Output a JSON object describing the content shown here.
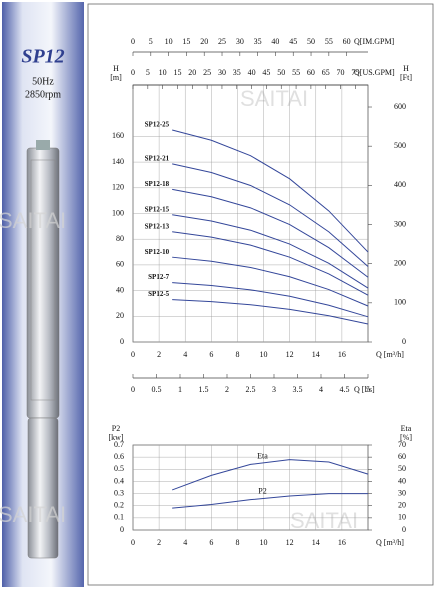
{
  "panel": {
    "model": "SP12",
    "frequency": "50Hz",
    "speed": "2850rpm"
  },
  "watermark": "SAITAI",
  "chart_data": [
    {
      "type": "line",
      "ylabel": "H",
      "ylabel_unit": "[m]",
      "y2label": "H",
      "y2label_unit": "[Ft]",
      "xlabel": "Q [m³/h]",
      "x": [
        3,
        6,
        9,
        12,
        15,
        18
      ],
      "xlim": [
        0,
        18
      ],
      "xticks": [
        0,
        2,
        4,
        6,
        8,
        10,
        12,
        14,
        16
      ],
      "ylim": [
        0,
        200
      ],
      "yticks": [
        0,
        20,
        40,
        60,
        80,
        100,
        120,
        140,
        160
      ],
      "y2lim": [
        0,
        656.2
      ],
      "y2ticks": [
        0,
        100,
        200,
        300,
        400,
        500,
        600
      ],
      "grid": true,
      "top_axes": [
        {
          "label": "Q[IM.GPM]",
          "lim": [
            0,
            66
          ],
          "ticks": [
            0,
            5,
            10,
            15,
            20,
            25,
            30,
            35,
            40,
            45,
            50,
            55,
            60
          ]
        },
        {
          "label": "Q[US.GPM]",
          "lim": [
            0,
            79.26
          ],
          "ticks": [
            0,
            5,
            10,
            15,
            20,
            25,
            30,
            35,
            40,
            45,
            50,
            55,
            60,
            65,
            70,
            75
          ]
        }
      ],
      "bottom_axis": {
        "label": "Q [l/s]",
        "lim": [
          0,
          5
        ],
        "ticks": [
          0,
          0.5,
          1,
          1.5,
          2,
          2.5,
          3,
          3.5,
          4,
          4.5,
          5
        ]
      },
      "series": [
        {
          "name": "SP12-25",
          "color": "#34479a",
          "values": [
            165,
            157,
            145,
            127,
            102,
            70
          ]
        },
        {
          "name": "SP12-21",
          "color": "#34479a",
          "values": [
            138.6,
            131.9,
            121.8,
            106.7,
            85.7,
            58.8
          ]
        },
        {
          "name": "SP12-18",
          "color": "#34479a",
          "values": [
            118.8,
            113,
            104.4,
            91.4,
            73.4,
            50.4
          ]
        },
        {
          "name": "SP12-15",
          "color": "#34479a",
          "values": [
            99,
            94.2,
            87,
            76.2,
            61.2,
            42
          ]
        },
        {
          "name": "SP12-13",
          "color": "#34479a",
          "values": [
            85.8,
            81.6,
            75.4,
            66,
            53,
            36.4
          ]
        },
        {
          "name": "SP12-10",
          "color": "#34479a",
          "values": [
            66,
            62.8,
            58,
            50.8,
            40.8,
            28
          ]
        },
        {
          "name": "SP12-7",
          "color": "#34479a",
          "values": [
            46.2,
            44,
            40.6,
            35.6,
            28.6,
            19.6
          ]
        },
        {
          "name": "SP12-5",
          "color": "#34479a",
          "values": [
            33,
            31.4,
            29,
            25.4,
            20.4,
            14
          ]
        }
      ]
    },
    {
      "type": "line",
      "ylabel": "P2",
      "ylabel_unit": "[kw]",
      "y2label": "Eta",
      "y2label_unit": "[%]",
      "xlabel": "Q [m³/h]",
      "x": [
        3,
        6,
        9,
        12,
        15,
        18
      ],
      "xlim": [
        0,
        18
      ],
      "xticks": [
        0,
        2,
        4,
        6,
        8,
        10,
        12,
        14,
        16
      ],
      "ylim": [
        0,
        0.7
      ],
      "yticks": [
        0,
        0.1,
        0.2,
        0.3,
        0.4,
        0.5,
        0.6,
        0.7
      ],
      "y2lim": [
        0,
        70
      ],
      "y2ticks": [
        0,
        10,
        20,
        30,
        40,
        50,
        60,
        70
      ],
      "grid": true,
      "series": [
        {
          "name": "Eta",
          "color": "#34479a",
          "axis": "y2",
          "values": [
            33,
            45,
            54,
            58,
            56,
            46
          ]
        },
        {
          "name": "P2",
          "color": "#34479a",
          "values": [
            0.18,
            0.21,
            0.25,
            0.28,
            0.3,
            0.3
          ]
        }
      ]
    }
  ]
}
